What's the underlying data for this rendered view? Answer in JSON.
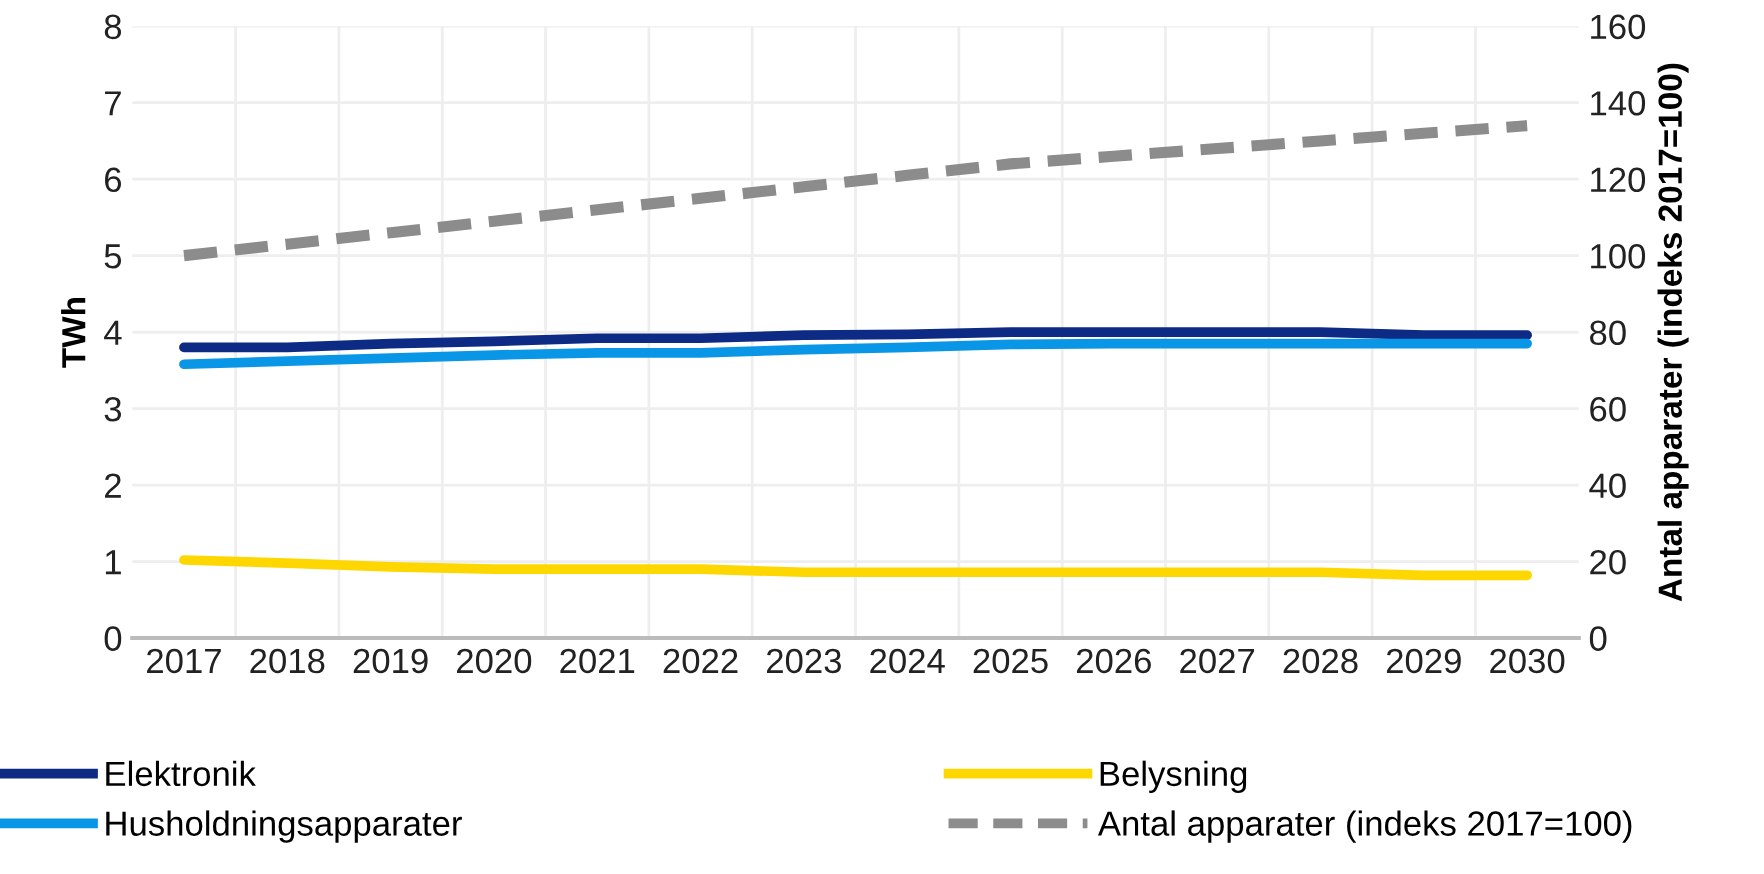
{
  "chart_data": {
    "type": "line",
    "categories": [
      "2017",
      "2018",
      "2019",
      "2020",
      "2021",
      "2022",
      "2023",
      "2024",
      "2025",
      "2026",
      "2027",
      "2028",
      "2029",
      "2030"
    ],
    "ylabel": "TWh",
    "y2label": "Antal apparater (indeks 2017=100)",
    "ylim": [
      0,
      8
    ],
    "yticks": [
      0,
      1,
      2,
      3,
      4,
      5,
      6,
      7,
      8
    ],
    "y2lim": [
      0,
      160
    ],
    "y2ticks": [
      0,
      20,
      40,
      60,
      80,
      100,
      120,
      140,
      160
    ],
    "grid": true,
    "legend": "bottom",
    "marker": "none",
    "series": [
      {
        "name": "Elektronik",
        "color": "#0d2a85",
        "line_style": "solid",
        "values": [
          3.8,
          3.8,
          3.85,
          3.88,
          3.92,
          3.92,
          3.96,
          3.97,
          4.0,
          4.0,
          4.0,
          4.0,
          3.96,
          3.96
        ]
      },
      {
        "name": "Husholdningsapparater",
        "color": "#0a96e6",
        "line_style": "solid",
        "values": [
          3.58,
          3.62,
          3.66,
          3.7,
          3.73,
          3.73,
          3.77,
          3.8,
          3.84,
          3.85,
          3.85,
          3.85,
          3.85,
          3.85
        ]
      },
      {
        "name": "Belysning",
        "color": "#ffd700",
        "line_style": "solid",
        "values": [
          1.02,
          0.98,
          0.93,
          0.9,
          0.9,
          0.9,
          0.86,
          0.86,
          0.86,
          0.86,
          0.86,
          0.86,
          0.82,
          0.82
        ]
      },
      {
        "name": "Antal apparater (indeks 2017=100)",
        "color": "#8c8c8c",
        "line_style": "dashed",
        "axis": "y2",
        "values": [
          100,
          103,
          106,
          109,
          112,
          115,
          118,
          121,
          124,
          126,
          128,
          130,
          132,
          134
        ]
      }
    ]
  }
}
